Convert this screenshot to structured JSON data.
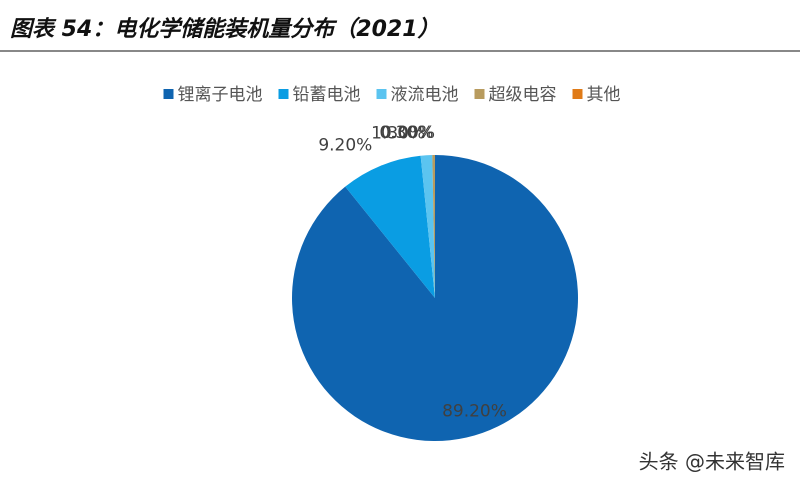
{
  "chart_data": {
    "type": "pie",
    "title": "图表 54：电化学储能装机量分布（2021）",
    "categories": [
      "锂离子电池",
      "铅蓄电池",
      "液流电池",
      "超级电容",
      "其他"
    ],
    "values": [
      89.2,
      9.2,
      1.3,
      0.3,
      0.0
    ],
    "value_labels": [
      "89.20%",
      "9.20%",
      "1.30%",
      "0.30%",
      "0.00%"
    ],
    "colors": [
      "#0f64b0",
      "#0a9de3",
      "#5bc4f0",
      "#b89b5e",
      "#e07b18"
    ],
    "legend": "top"
  },
  "watermark": "头条 @未来智库"
}
